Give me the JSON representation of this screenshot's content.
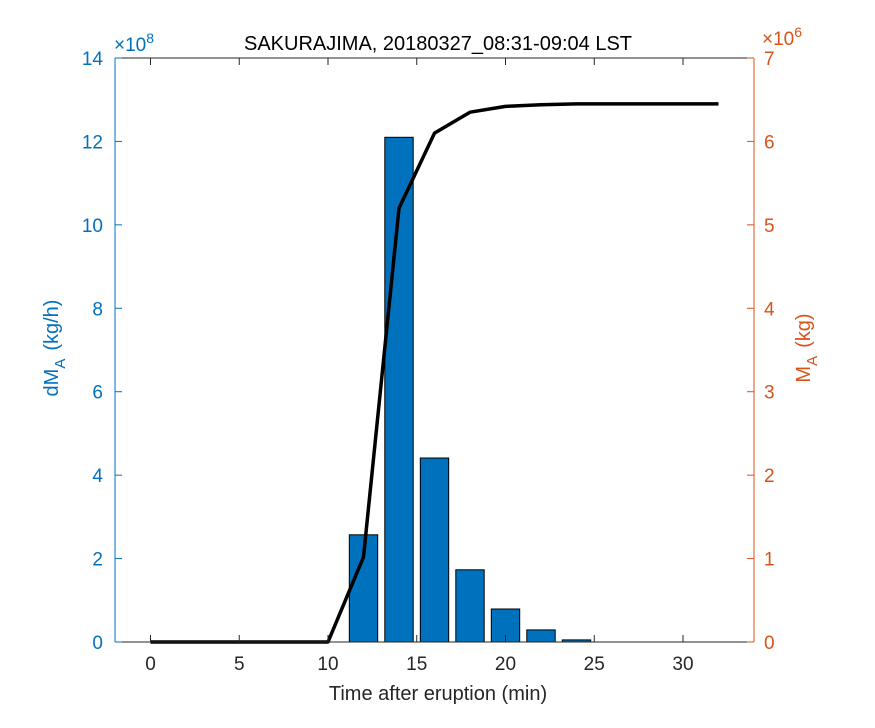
{
  "chart_data": {
    "type": "bar",
    "title": "SAKURAJIMA, 20180327_08:31-09:04 LST",
    "xlabel": "Time after eruption (min)",
    "xlim": [
      -2,
      34
    ],
    "xticks": [
      0,
      5,
      10,
      15,
      20,
      25,
      30
    ],
    "left_axis": {
      "label_main": "dM",
      "label_sub": "A",
      "label_unit": "(kg/h)",
      "exponent_prefix": "×10",
      "exponent_power": "8",
      "ylim": [
        0,
        14
      ],
      "ticks": [
        0,
        2,
        4,
        6,
        8,
        10,
        12,
        14
      ],
      "color": "#0072BD"
    },
    "right_axis": {
      "label_main": "M",
      "label_sub": "A",
      "label_unit": "(kg)",
      "exponent_prefix": "×10",
      "exponent_power": "6",
      "ylim": [
        0,
        7
      ],
      "ticks": [
        0,
        1,
        2,
        3,
        4,
        5,
        6,
        7
      ],
      "color": "#D95319"
    },
    "series": [
      {
        "type": "bar",
        "axis": "left",
        "color": "#0072BD",
        "x": [
          0,
          2,
          4,
          6,
          8,
          10,
          12,
          14,
          16,
          18,
          20,
          22,
          24,
          26,
          28,
          30,
          32
        ],
        "values": [
          0,
          0,
          0,
          0,
          0,
          0,
          2.57,
          12.1,
          4.41,
          1.73,
          0.79,
          0.29,
          0.05,
          0,
          0,
          0,
          0
        ]
      },
      {
        "type": "line",
        "axis": "right",
        "color": "#000000",
        "x": [
          0,
          2,
          4,
          6,
          8,
          10,
          12,
          14,
          16,
          18,
          20,
          22,
          24,
          26,
          28,
          30,
          32
        ],
        "values": [
          0,
          0,
          0,
          0,
          0,
          0,
          1.02,
          5.2,
          6.1,
          6.35,
          6.42,
          6.44,
          6.45,
          6.45,
          6.45,
          6.45,
          6.45
        ]
      }
    ]
  }
}
